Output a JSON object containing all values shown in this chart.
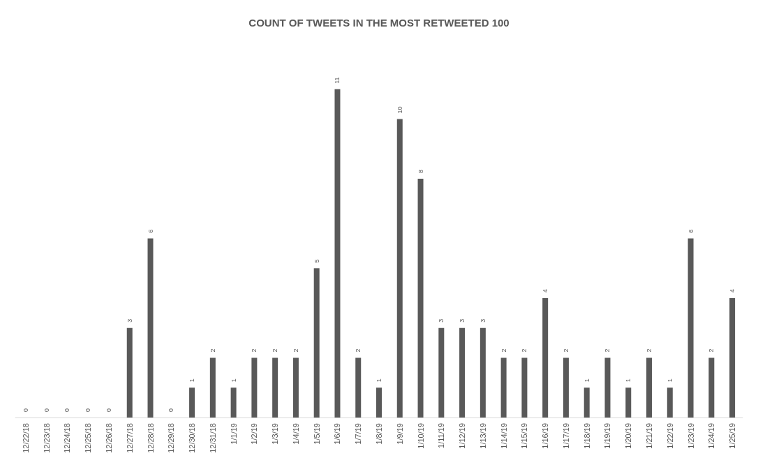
{
  "chart_data": {
    "type": "bar",
    "title": "COUNT OF TWEETS IN THE MOST RETWEETED 100",
    "categories": [
      "12/22/18",
      "12/23/18",
      "12/24/18",
      "12/25/18",
      "12/26/18",
      "12/27/18",
      "12/28/18",
      "12/29/18",
      "12/30/18",
      "12/31/18",
      "1/1/19",
      "1/2/19",
      "1/3/19",
      "1/4/19",
      "1/5/19",
      "1/6/19",
      "1/7/19",
      "1/8/19",
      "1/9/19",
      "1/10/19",
      "1/11/19",
      "1/12/19",
      "1/13/19",
      "1/14/19",
      "1/15/19",
      "1/16/19",
      "1/17/19",
      "1/18/19",
      "1/19/19",
      "1/20/19",
      "1/21/19",
      "1/22/19",
      "1/23/19",
      "1/24/19",
      "1/25/19"
    ],
    "values": [
      0,
      0,
      0,
      0,
      0,
      3,
      6,
      0,
      1,
      2,
      1,
      2,
      2,
      2,
      5,
      11,
      2,
      1,
      10,
      8,
      3,
      3,
      3,
      2,
      2,
      4,
      2,
      1,
      2,
      1,
      2,
      1,
      6,
      2,
      4
    ],
    "color": "#595959",
    "data_labels": true,
    "tick_labels": "x"
  }
}
